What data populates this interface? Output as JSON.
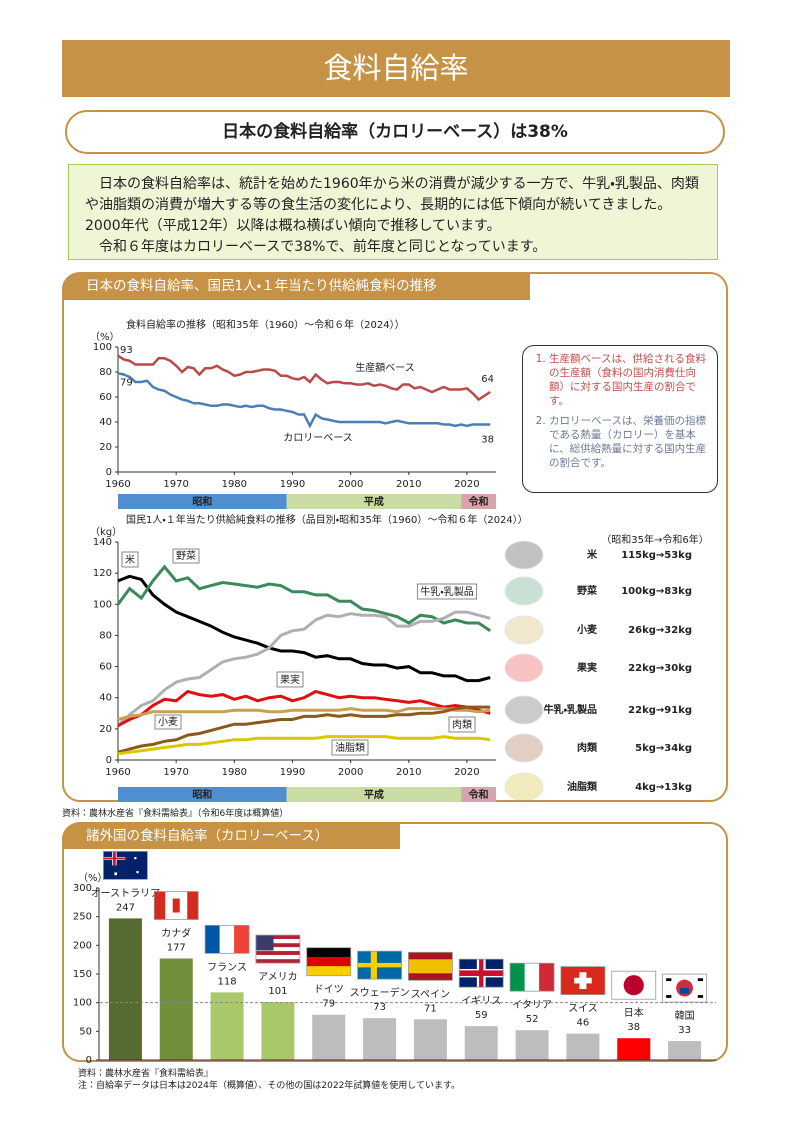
{
  "header": {
    "title": "食料自給率"
  },
  "headline": "日本の食料自給率（カロリーベース）は38%",
  "intro": [
    "日本の食料自給率は、統計を始めた1960年から米の消費が減少する一方で、牛乳・乳製品、肉類や油脂類の消費が増大する等の食生活の変化により、長期的には低下傾向が続いてきました。2000年代（平成12年）以降は概ね横ばい傾向で推移しています。",
    "令和６年度はカロリーベースで38%で、前年度と同じとなっています。"
  ],
  "section1": {
    "title": "日本の食料自給率、国民1人・１年当たり供給純食料の推移",
    "notes": [
      "生産額ベースは、供給される食料の生産額（食料の国内消費仕向額）に対する国内生産の割合です。",
      "カロリーベースは、栄養価の指標である熱量（カロリー）を基本に、総供給熱量に対する国内生産の割合です。"
    ],
    "period": "（昭和35年→令和6年）",
    "items": [
      {
        "name": "米",
        "text": "115kg→53kg",
        "color": "#111111"
      },
      {
        "name": "野菜",
        "text": "100kg→83kg",
        "color": "#2e8b57"
      },
      {
        "name": "小麦",
        "text": "26kg→32kg",
        "color": "#c9a040"
      },
      {
        "name": "果実",
        "text": "22kg→30kg",
        "color": "#e01010"
      },
      {
        "name": "牛乳・乳製品",
        "text": "22kg→91kg",
        "color": "#333333"
      },
      {
        "name": "肉類",
        "text": "5kg→34kg",
        "color": "#8b4513"
      },
      {
        "name": "油脂類",
        "text": "4kg→13kg",
        "color": "#c8b400"
      }
    ],
    "source": "資料：農林水産省『食料需給表』（令和6年度は概算値）"
  },
  "section2": {
    "title": "諸外国の食料自給率（カロリーベース）",
    "source": "資料：農林水産省『食料需給表』",
    "note": "注：自給率データは日本は2024年（概算値）、その他の国は2022年試算値を使用しています。"
  },
  "chart_data": [
    {
      "type": "line",
      "title": "食料自給率の推移（昭和35年（1960）～令和６年（2024））",
      "y_unit": "（%）",
      "x": [
        1960,
        1961,
        1962,
        1963,
        1964,
        1965,
        1966,
        1967,
        1968,
        1969,
        1970,
        1971,
        1972,
        1973,
        1974,
        1975,
        1976,
        1977,
        1978,
        1979,
        1980,
        1981,
        1982,
        1983,
        1984,
        1985,
        1986,
        1987,
        1988,
        1989,
        1990,
        1991,
        1992,
        1993,
        1994,
        1995,
        1996,
        1997,
        1998,
        1999,
        2000,
        2001,
        2002,
        2003,
        2004,
        2005,
        2006,
        2007,
        2008,
        2009,
        2010,
        2011,
        2012,
        2013,
        2014,
        2015,
        2016,
        2017,
        2018,
        2019,
        2020,
        2021,
        2022,
        2023,
        2024
      ],
      "series": [
        {
          "name": "生産額ベース",
          "color": "#b94a48",
          "values": [
            93,
            90,
            89,
            86,
            86,
            86,
            86,
            91,
            91,
            89,
            85,
            80,
            84,
            83,
            78,
            83,
            83,
            85,
            82,
            80,
            77,
            78,
            80,
            80,
            81,
            82,
            82,
            81,
            77,
            77,
            75,
            74,
            76,
            72,
            78,
            74,
            71,
            72,
            72,
            71,
            71,
            70,
            70,
            71,
            69,
            70,
            69,
            67,
            66,
            70,
            70,
            67,
            68,
            66,
            64,
            66,
            68,
            66,
            66,
            66,
            67,
            63,
            58,
            61,
            64
          ]
        },
        {
          "name": "カロリーベース",
          "color": "#4a7fb5",
          "values": [
            79,
            78,
            76,
            72,
            72,
            73,
            68,
            66,
            65,
            62,
            60,
            58,
            57,
            55,
            55,
            54,
            53,
            53,
            54,
            54,
            53,
            52,
            53,
            52,
            53,
            53,
            51,
            50,
            50,
            49,
            48,
            46,
            46,
            37,
            46,
            43,
            42,
            41,
            40,
            40,
            40,
            40,
            40,
            40,
            40,
            40,
            39,
            40,
            41,
            40,
            39,
            39,
            39,
            39,
            39,
            39,
            38,
            38,
            37,
            38,
            37,
            38,
            38,
            38,
            38
          ]
        }
      ],
      "xlim": [
        1960,
        2025
      ],
      "xticks": [
        1960,
        1970,
        1980,
        1990,
        2000,
        2010,
        2020
      ],
      "ylim": [
        0,
        100
      ],
      "yticks": [
        0,
        20,
        40,
        60,
        80,
        100
      ],
      "eras": [
        {
          "label": "昭和",
          "start": 1960,
          "end": 1989,
          "color": "#4f8fd0"
        },
        {
          "label": "平成",
          "start": 1989,
          "end": 2019,
          "color": "#c9dca3"
        },
        {
          "label": "令和",
          "start": 2019,
          "end": 2025,
          "color": "#d9a3ab"
        }
      ]
    },
    {
      "type": "line",
      "title": "国民1人・１年当たり供給純食料の推移（品目別・昭和35年（1960）～令和６年（2024））",
      "y_unit": "（kg）",
      "x": [
        1960,
        1962,
        1964,
        1966,
        1968,
        1970,
        1972,
        1974,
        1976,
        1978,
        1980,
        1982,
        1984,
        1986,
        1988,
        1990,
        1992,
        1994,
        1996,
        1998,
        2000,
        2002,
        2004,
        2006,
        2008,
        2010,
        2012,
        2014,
        2016,
        2018,
        2020,
        2022,
        2024
      ],
      "series": [
        {
          "name": "米",
          "color": "#000000",
          "values": [
            115,
            118,
            116,
            106,
            100,
            95,
            92,
            89,
            86,
            82,
            79,
            77,
            75,
            72,
            70,
            70,
            69,
            66,
            67,
            65,
            65,
            62,
            61,
            61,
            59,
            60,
            56,
            56,
            54,
            54,
            51,
            51,
            53
          ]
        },
        {
          "name": "野菜",
          "color": "#3a8a5c",
          "values": [
            100,
            110,
            104,
            115,
            124,
            115,
            117,
            110,
            112,
            114,
            113,
            112,
            111,
            113,
            112,
            108,
            108,
            106,
            106,
            102,
            102,
            97,
            96,
            94,
            92,
            88,
            93,
            92,
            88,
            90,
            88,
            88,
            83
          ]
        },
        {
          "name": "牛乳・乳製品",
          "color": "#b0b0b0",
          "values": [
            22,
            29,
            35,
            38,
            45,
            50,
            52,
            53,
            58,
            63,
            65,
            66,
            68,
            72,
            80,
            83,
            84,
            90,
            93,
            92,
            94,
            93,
            93,
            92,
            86,
            86,
            89,
            89,
            91,
            95,
            95,
            93,
            91
          ]
        },
        {
          "name": "果実",
          "color": "#e01010",
          "values": [
            22,
            26,
            29,
            35,
            39,
            38,
            44,
            42,
            41,
            42,
            39,
            41,
            38,
            40,
            41,
            38,
            40,
            44,
            42,
            40,
            41,
            40,
            40,
            39,
            38,
            37,
            38,
            36,
            34,
            35,
            34,
            32,
            30
          ]
        },
        {
          "name": "小麦",
          "color": "#c9a050",
          "values": [
            26,
            28,
            29,
            31,
            31,
            31,
            31,
            31,
            31,
            31,
            32,
            32,
            32,
            31,
            31,
            32,
            32,
            32,
            32,
            32,
            33,
            32,
            32,
            32,
            31,
            33,
            33,
            33,
            33,
            32,
            32,
            31,
            32
          ]
        },
        {
          "name": "肉類",
          "color": "#8b5a1a",
          "values": [
            5,
            7,
            9,
            10,
            12,
            13,
            16,
            17,
            19,
            21,
            23,
            23,
            24,
            25,
            26,
            26,
            28,
            28,
            29,
            28,
            29,
            28,
            28,
            28,
            29,
            29,
            30,
            30,
            31,
            33,
            34,
            34,
            34
          ]
        },
        {
          "name": "油脂類",
          "color": "#d9c800",
          "values": [
            4,
            5,
            6,
            7,
            8,
            9,
            10,
            10,
            11,
            12,
            13,
            13,
            14,
            14,
            14,
            14,
            14,
            14,
            15,
            15,
            15,
            15,
            15,
            15,
            14,
            14,
            14,
            14,
            15,
            14,
            14,
            14,
            13
          ]
        }
      ],
      "xlim": [
        1960,
        2025
      ],
      "xticks": [
        1960,
        1970,
        1980,
        1990,
        2000,
        2010,
        2020
      ],
      "ylim": [
        0,
        140
      ],
      "yticks": [
        0,
        20,
        40,
        60,
        80,
        100,
        120,
        140
      ],
      "eras": [
        {
          "label": "昭和",
          "start": 1960,
          "end": 1989,
          "color": "#4f8fd0"
        },
        {
          "label": "平成",
          "start": 1989,
          "end": 2019,
          "color": "#c9dca3"
        },
        {
          "label": "令和",
          "start": 2019,
          "end": 2025,
          "color": "#d9a3ab"
        }
      ]
    },
    {
      "type": "bar",
      "y_unit": "（%）",
      "categories": [
        "オーストラリア",
        "カナダ",
        "フランス",
        "アメリカ",
        "ドイツ",
        "スウェーデン",
        "スペイン",
        "イギリス",
        "イタリア",
        "スイス",
        "日本",
        "韓国"
      ],
      "values": [
        247,
        177,
        118,
        101,
        79,
        73,
        71,
        59,
        52,
        46,
        38,
        33
      ],
      "colors": [
        "#556b2f",
        "#6f8f3a",
        "#a9c86a",
        "#a9c86a",
        "#bdbdbd",
        "#bdbdbd",
        "#bdbdbd",
        "#bdbdbd",
        "#bdbdbd",
        "#bdbdbd",
        "#ff0000",
        "#bdbdbd"
      ],
      "highlight_index": 10,
      "highlight_color": "#ff0000",
      "reference_line": 100,
      "ylim": [
        0,
        300
      ],
      "yticks": [
        0,
        50,
        100,
        150,
        200,
        250,
        300
      ]
    }
  ]
}
